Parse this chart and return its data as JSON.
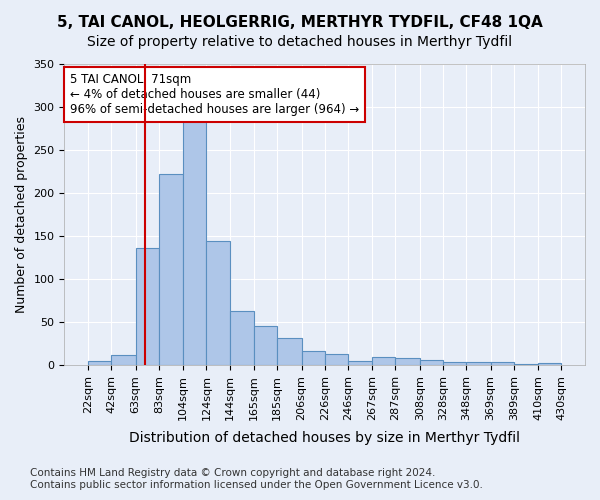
{
  "title": "5, TAI CANOL, HEOLGERRIG, MERTHYR TYDFIL, CF48 1QA",
  "subtitle": "Size of property relative to detached houses in Merthyr Tydfil",
  "xlabel": "Distribution of detached houses by size in Merthyr Tydfil",
  "ylabel": "Number of detached properties",
  "footer_line1": "Contains HM Land Registry data © Crown copyright and database right 2024.",
  "footer_line2": "Contains public sector information licensed under the Open Government Licence v3.0.",
  "annotation_title": "5 TAI CANOL: 71sqm",
  "annotation_line2": "← 4% of detached houses are smaller (44)",
  "annotation_line3": "96% of semi-detached houses are larger (964) →",
  "red_line_x": 71,
  "bar_edges": [
    22,
    42,
    63,
    83,
    104,
    124,
    144,
    165,
    185,
    206,
    226,
    246,
    267,
    287,
    308,
    328,
    348,
    369,
    389,
    410,
    430
  ],
  "bar_heights": [
    5,
    12,
    136,
    222,
    284,
    144,
    63,
    45,
    32,
    16,
    13,
    5,
    9,
    8,
    6,
    3,
    3,
    3,
    1,
    2
  ],
  "bar_color": "#aec6e8",
  "bar_edge_color": "#5a8fc0",
  "red_line_color": "#cc0000",
  "background_color": "#e8eef8",
  "plot_bg_color": "#e8eef8",
  "annotation_box_color": "#ffffff",
  "annotation_box_edge": "#cc0000",
  "ylim": [
    0,
    350
  ],
  "yticks": [
    0,
    50,
    100,
    150,
    200,
    250,
    300,
    350
  ],
  "title_fontsize": 11,
  "subtitle_fontsize": 10,
  "xlabel_fontsize": 10,
  "ylabel_fontsize": 9,
  "tick_fontsize": 8,
  "annotation_fontsize": 8.5,
  "footer_fontsize": 7.5
}
